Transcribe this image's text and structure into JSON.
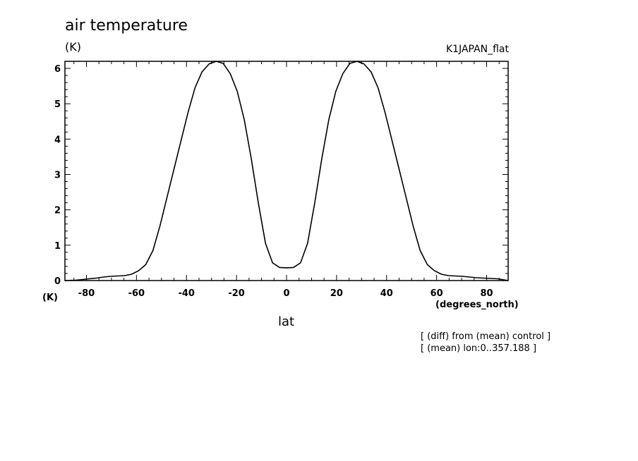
{
  "chart_data": {
    "type": "line",
    "title": "air temperature",
    "ylabel": "(K)",
    "yunit_bottom": "(K)",
    "xlabel": "lat",
    "xunit": "(degrees_north)",
    "run_label": "K1JAPAN_flat",
    "notes": [
      "[ (diff) from (mean) control ]",
      "[ (mean) lon:0..357.188 ]"
    ],
    "xlim": [
      -88.6,
      88.6
    ],
    "ylim": [
      0,
      6.2
    ],
    "x_ticks": [
      -80,
      -60,
      -40,
      -20,
      0,
      20,
      40,
      60,
      80
    ],
    "x_tick_labels": [
      "-80",
      "-60",
      "-40",
      "-20",
      "0",
      "20",
      "40",
      "60",
      "80"
    ],
    "y_ticks": [
      0,
      1,
      2,
      3,
      4,
      5,
      6
    ],
    "y_tick_labels": [
      "0",
      "1",
      "2",
      "3",
      "4",
      "5",
      "6"
    ],
    "grid": false,
    "series": [
      {
        "x": [
          -88.6,
          -84.4,
          -81.6,
          -78.8,
          -76.0,
          -73.1,
          -70.3,
          -67.5,
          -64.7,
          -61.9,
          -59.1,
          -56.3,
          -53.4,
          -50.6,
          -47.8,
          -45.0,
          -42.2,
          -39.4,
          -36.6,
          -33.8,
          -30.9,
          -28.1,
          -25.3,
          -22.5,
          -19.7,
          -16.9,
          -14.1,
          -11.3,
          -8.4,
          -5.6,
          -2.8,
          0.0,
          2.8,
          5.6,
          8.4,
          11.3,
          14.1,
          16.9,
          19.7,
          22.5,
          25.3,
          28.1,
          30.9,
          33.8,
          36.6,
          39.4,
          42.2,
          45.0,
          47.8,
          50.6,
          53.4,
          56.3,
          59.1,
          61.9,
          64.7,
          67.5,
          70.3,
          73.1,
          76.0,
          78.8,
          81.6,
          84.4,
          88.6
        ],
        "y": [
          0.0,
          0.01,
          0.03,
          0.05,
          0.07,
          0.1,
          0.12,
          0.13,
          0.14,
          0.18,
          0.28,
          0.45,
          0.85,
          1.55,
          2.35,
          3.15,
          3.95,
          4.75,
          5.45,
          5.9,
          6.13,
          6.2,
          6.14,
          5.85,
          5.35,
          4.55,
          3.45,
          2.2,
          1.05,
          0.5,
          0.37,
          0.36,
          0.37,
          0.5,
          1.05,
          2.2,
          3.45,
          4.55,
          5.35,
          5.85,
          6.14,
          6.2,
          6.13,
          5.9,
          5.45,
          4.75,
          3.95,
          3.15,
          2.35,
          1.55,
          0.85,
          0.45,
          0.28,
          0.18,
          0.14,
          0.13,
          0.12,
          0.1,
          0.08,
          0.07,
          0.06,
          0.05,
          0.0
        ]
      }
    ]
  }
}
